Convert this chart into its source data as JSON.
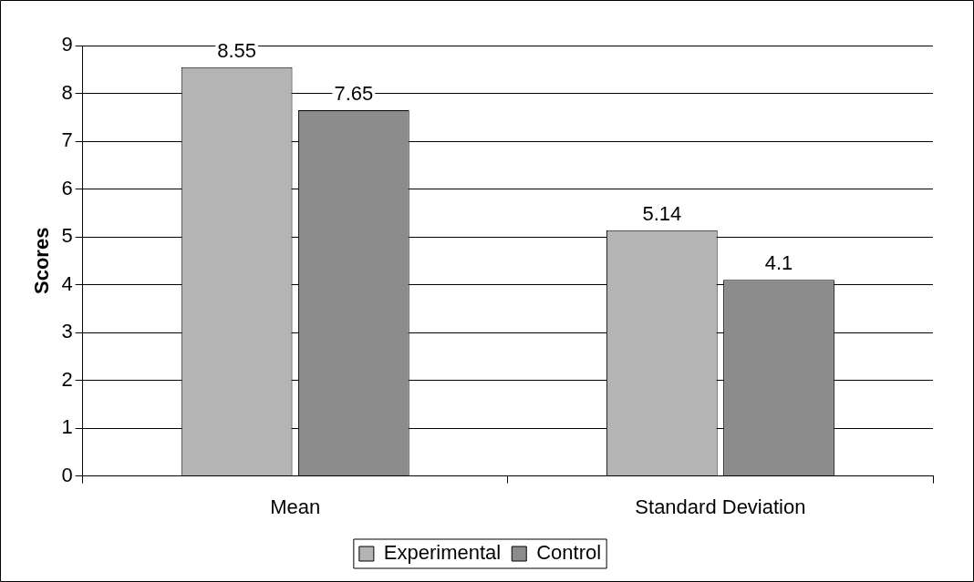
{
  "chart_data": {
    "type": "bar",
    "ylabel": "Scores",
    "categories": [
      "Mean",
      "Standard Deviation"
    ],
    "series": [
      {
        "name": "Experimental",
        "color": "#b4b4b4",
        "values": [
          8.55,
          5.14
        ]
      },
      {
        "name": "Control",
        "color": "#8c8c8c",
        "values": [
          7.65,
          4.1
        ]
      }
    ],
    "ylim": [
      0,
      9
    ],
    "yticks": [
      0,
      1,
      2,
      3,
      4,
      5,
      6,
      7,
      8,
      9
    ],
    "grid": "y",
    "legend": "bottom",
    "data_labels": true
  }
}
